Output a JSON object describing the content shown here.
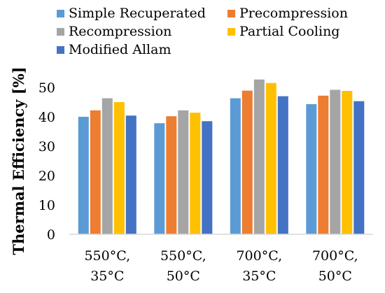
{
  "chart_data": {
    "type": "bar",
    "title": "",
    "xlabel": "",
    "ylabel": "Thermal Efficiency [%]",
    "ylim": [
      0,
      55
    ],
    "yticks": [
      0,
      10,
      20,
      30,
      40,
      50
    ],
    "grid": false,
    "legend_position": "top",
    "categories": [
      [
        "550°C,",
        "35°C"
      ],
      [
        "550°C,",
        "50°C"
      ],
      [
        "700°C,",
        "35°C"
      ],
      [
        "700°C,",
        "50°C"
      ]
    ],
    "series": [
      {
        "name": "Simple Recuperated",
        "color": "#5b9bd5",
        "values": [
          40.0,
          37.8,
          46.3,
          44.3
        ]
      },
      {
        "name": "Precompression",
        "color": "#ed7d31",
        "values": [
          42.2,
          40.2,
          48.9,
          47.2
        ]
      },
      {
        "name": "Recompression",
        "color": "#a5a5a5",
        "values": [
          46.3,
          42.2,
          52.7,
          49.2
        ]
      },
      {
        "name": "Partial Cooling",
        "color": "#ffc000",
        "values": [
          45.0,
          41.4,
          51.5,
          48.8
        ]
      },
      {
        "name": "Modified Allam",
        "color": "#4472c4",
        "values": [
          40.4,
          38.5,
          47.0,
          45.3
        ]
      }
    ]
  }
}
